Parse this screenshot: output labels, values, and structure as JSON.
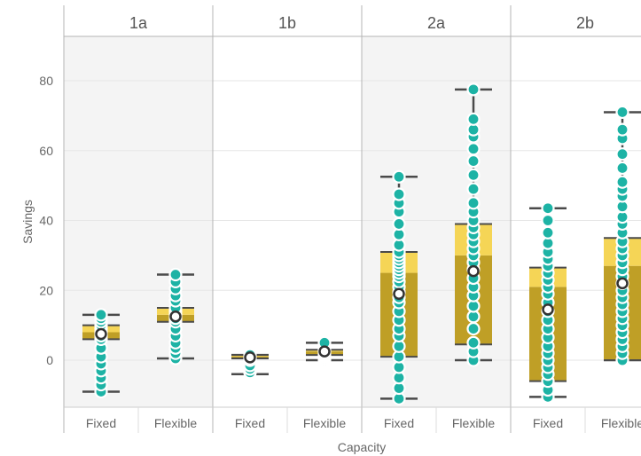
{
  "chart_data": {
    "type": "box",
    "xlabel": "Capacity",
    "ylabel": "Savings",
    "ylim": [
      -13,
      93
    ],
    "yticks": [
      0,
      20,
      40,
      60,
      80
    ],
    "grid": true,
    "colors": {
      "panel_shaded": "#f4f4f4",
      "box_lower": "#bf9f26",
      "box_upper": "#f5d556",
      "point_fill": "#1db3a5",
      "whisker": "#4a4a4a",
      "gridline": "#e6e6e6",
      "divider": "#b4b4b4",
      "mean_fill": "#ffffff",
      "mean_stroke": "#333333"
    },
    "panels": [
      {
        "title": "1a",
        "groups": [
          {
            "category": "Fixed",
            "min": -9,
            "q1": 6,
            "median": 8,
            "q3": 10,
            "max": 13,
            "mean": 7.5,
            "points": [
              -9,
              -7,
              -5,
              -3,
              -1,
              1,
              3.5,
              6,
              7,
              8,
              9,
              10,
              11,
              12,
              13
            ]
          },
          {
            "category": "Flexible",
            "min": 0.5,
            "q1": 11,
            "median": 13,
            "q3": 15,
            "max": 24.5,
            "mean": 12.5,
            "points": [
              0.5,
              2,
              3.5,
              5,
              7,
              9,
              11,
              12,
              13,
              14,
              15,
              17,
              18.5,
              20.5,
              22.5,
              24.5
            ]
          }
        ]
      },
      {
        "title": "1b",
        "groups": [
          {
            "category": "Fixed",
            "min": -4,
            "q1": 0.5,
            "median": 1,
            "q3": 1.5,
            "max": 1.5,
            "mean": 0.8,
            "points": [
              -3.5,
              -2.5,
              -1.5,
              0,
              0.5,
              1,
              1.5
            ]
          },
          {
            "category": "Flexible",
            "min": 0,
            "q1": 1.5,
            "median": 2.5,
            "q3": 3,
            "max": 5,
            "mean": 2.5,
            "points": [
              0,
              0.5,
              1,
              1.5,
              2,
              2.5,
              3,
              3.5,
              4,
              4.5,
              5
            ]
          }
        ]
      },
      {
        "title": "2a",
        "groups": [
          {
            "category": "Fixed",
            "min": -11,
            "q1": 1,
            "median": 25,
            "q3": 31,
            "max": 52.5,
            "mean": 19,
            "points": [
              -11,
              -8,
              -5,
              -2,
              1,
              4,
              7,
              9,
              11.5,
              14,
              16.5,
              18,
              19.5,
              21,
              22.5,
              24,
              25,
              26,
              27,
              28,
              29,
              30,
              31,
              33,
              36,
              39,
              42.5,
              45,
              47.5,
              52.5
            ]
          },
          {
            "category": "Flexible",
            "min": 0,
            "q1": 4.5,
            "median": 30,
            "q3": 39,
            "max": 77.5,
            "mean": 25.5,
            "points": [
              0,
              2.5,
              5,
              9,
              12.5,
              15.5,
              18.5,
              21,
              23.5,
              26,
              28,
              30,
              32,
              34,
              36,
              38,
              40,
              42.5,
              45,
              49,
              53,
              57,
              60.5,
              64,
              66,
              69,
              77.5
            ]
          }
        ]
      },
      {
        "title": "2b",
        "groups": [
          {
            "category": "Fixed",
            "min": -10.5,
            "q1": -6,
            "median": 21,
            "q3": 26.5,
            "max": 43.5,
            "mean": 14.5,
            "points": [
              -10.5,
              -8.5,
              -6,
              -4,
              -2,
              0,
              2,
              4,
              6.5,
              9,
              11.5,
              14,
              16.5,
              19,
              21,
              23,
              25,
              27,
              29,
              31,
              33.5,
              36.5,
              40,
              43.5
            ]
          },
          {
            "category": "Flexible",
            "min": 0,
            "q1": 0,
            "median": 27,
            "q3": 35,
            "max": 71,
            "mean": 22,
            "points": [
              0,
              2,
              4,
              6,
              8,
              10,
              12,
              14,
              16,
              18,
              20,
              22,
              24,
              26,
              28,
              30,
              32,
              34,
              36.5,
              39,
              41,
              44,
              47,
              49,
              51,
              55,
              59,
              63.5,
              66,
              71
            ]
          }
        ]
      }
    ]
  }
}
